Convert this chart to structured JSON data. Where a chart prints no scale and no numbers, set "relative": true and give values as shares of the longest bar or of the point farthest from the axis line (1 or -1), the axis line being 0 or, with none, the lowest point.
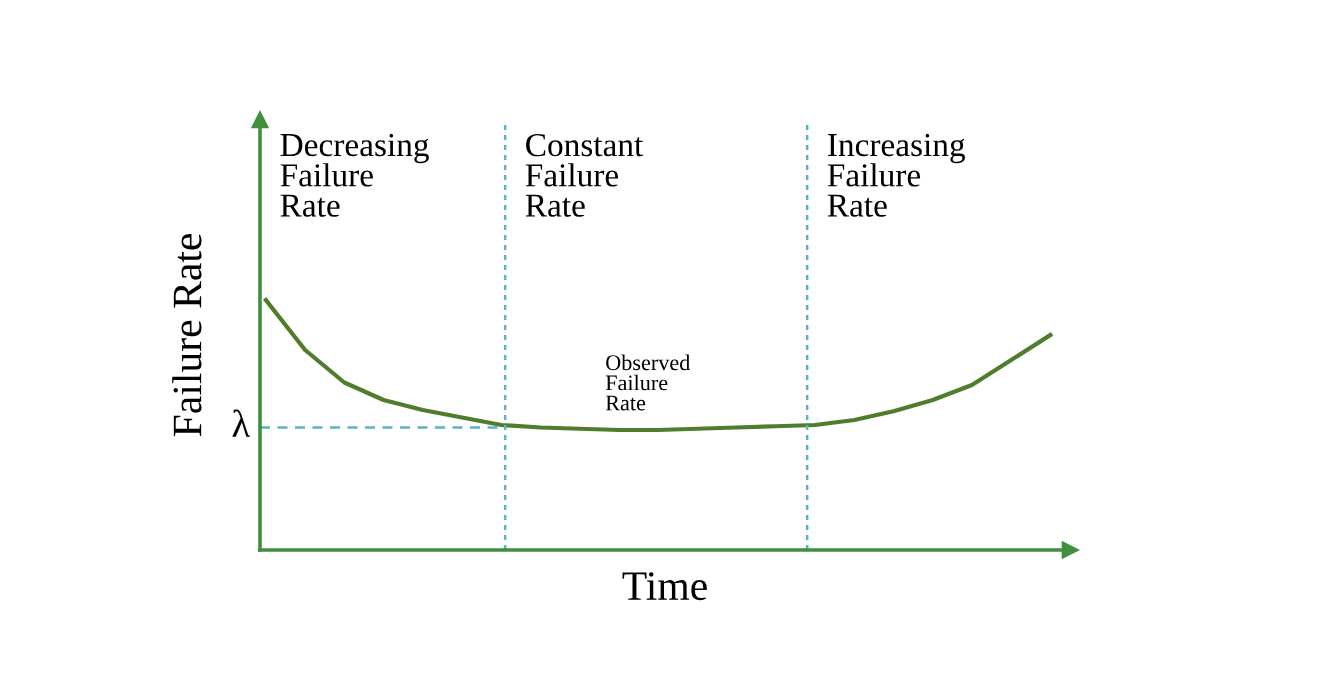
{
  "chart_data": {
    "type": "line",
    "relative": true,
    "xlabel": "Time",
    "ylabel": "Failure Rate",
    "categories": [
      null,
      null,
      null,
      null,
      null,
      null,
      null,
      null,
      null,
      null,
      null,
      null,
      null,
      null,
      null,
      null,
      null,
      null,
      null,
      null,
      null
    ],
    "series": [
      {
        "color": "#4e7d2c",
        "values": [
          1.0,
          0.8,
          0.67,
          0.6,
          0.56,
          0.53,
          0.5,
          0.49,
          0.485,
          0.48,
          0.48,
          0.485,
          0.49,
          0.495,
          0.5,
          0.52,
          0.555,
          0.6,
          0.66,
          0.76,
          0.86
        ]
      }
    ],
    "ref_lines": [
      {
        "axis": "y",
        "value": 0.49,
        "label": "λ",
        "color": "#5ab4c8",
        "line_style": "dashed"
      }
    ],
    "annotations": [
      "Decreasing\nFailure\nRate",
      "Constant\nFailure\nRate",
      "Increasing\nFailure\nRate",
      "Observed\nFailure\nRate"
    ]
  }
}
